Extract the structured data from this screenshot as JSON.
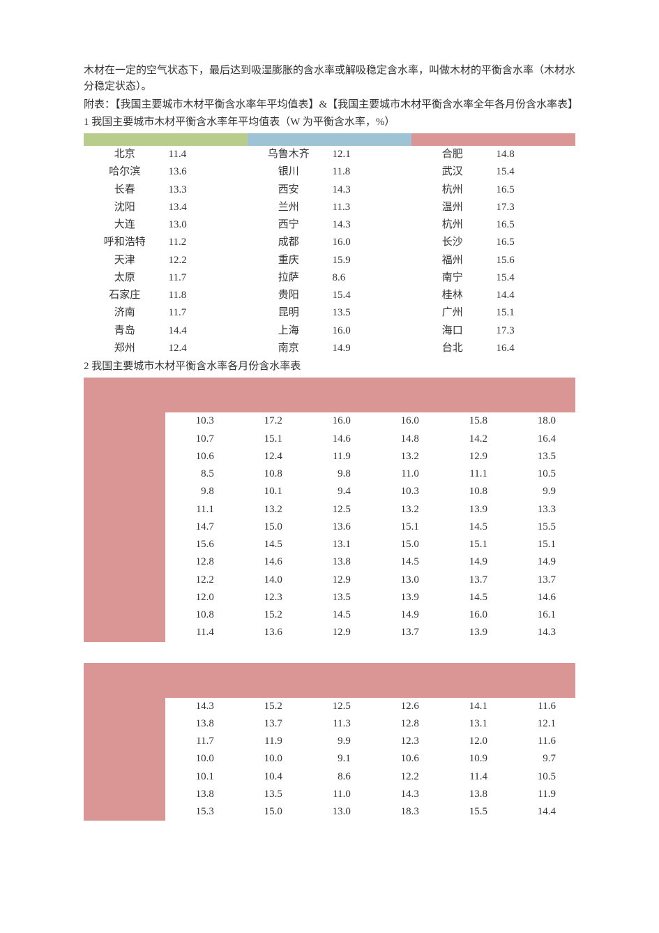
{
  "colors": {
    "text": "#333333",
    "header_green": "#b8cc8b",
    "header_blue": "#9dc3d5",
    "header_pink": "#da9694",
    "page_bg": "#ffffff"
  },
  "typography": {
    "font_family": "SimSun",
    "body_fontsize_pt": 11,
    "line_height": 1.55
  },
  "paragraphs": {
    "p1": "木材在一定的空气状态下，最后达到吸湿膨胀的含水率或解吸稳定含水率，叫做木材的平衡含水率（木材水分稳定状态）。",
    "p2": "附表：【我国主要城市木材平衡含水率年平均值表】&【我国主要城市木材平衡含水率全年各月份含水率表】",
    "p3": "1 我国主要城市木材平衡含水率年平均值表（W 为平衡含水率，%）",
    "p4": "2 我国主要城市木材平衡含水率各月份含水率表"
  },
  "table1": {
    "type": "table",
    "column_group_colors": [
      "#b8cc8b",
      "#9dc3d5",
      "#da9694"
    ],
    "rows": [
      {
        "c1": "北京",
        "v1": "11.4",
        "c2": "乌鲁木齐",
        "v2": "12.1",
        "c3": "合肥",
        "v3": "14.8"
      },
      {
        "c1": "哈尔滨",
        "v1": "13.6",
        "c2": "银川",
        "v2": "11.8",
        "c3": "武汉",
        "v3": "15.4"
      },
      {
        "c1": "长春",
        "v1": "13.3",
        "c2": "西安",
        "v2": "14.3",
        "c3": "杭州",
        "v3": "16.5"
      },
      {
        "c1": "沈阳",
        "v1": "13.4",
        "c2": "兰州",
        "v2": "11.3",
        "c3": "温州",
        "v3": "17.3"
      },
      {
        "c1": "大连",
        "v1": "13.0",
        "c2": "西宁",
        "v2": "14.3",
        "c3": "杭州",
        "v3": "16.5"
      },
      {
        "c1": "呼和浩特",
        "v1": "11.2",
        "c2": "成都",
        "v2": "16.0",
        "c3": "长沙",
        "v3": "16.5"
      },
      {
        "c1": "天津",
        "v1": "12.2",
        "c2": "重庆",
        "v2": "15.9",
        "c3": "福州",
        "v3": "15.6"
      },
      {
        "c1": "太原",
        "v1": "11.7",
        "c2": "拉萨",
        "v2": "8.6",
        "c3": "南宁",
        "v3": "15.4"
      },
      {
        "c1": "石家庄",
        "v1": "11.8",
        "c2": "贵阳",
        "v2": "15.4",
        "c3": "桂林",
        "v3": "14.4"
      },
      {
        "c1": "济南",
        "v1": "11.7",
        "c2": "昆明",
        "v2": "13.5",
        "c3": "广州",
        "v3": "15.1"
      },
      {
        "c1": "青岛",
        "v1": "14.4",
        "c2": "上海",
        "v2": "16.0",
        "c3": "海口",
        "v3": "17.3"
      },
      {
        "c1": "郑州",
        "v1": "12.4",
        "c2": "南京",
        "v2": "14.9",
        "c3": "台北",
        "v3": "16.4"
      }
    ]
  },
  "table2a": {
    "type": "table",
    "side_color": "#da9694",
    "header_color": "#da9694",
    "rows": [
      [
        "10.3",
        "17.2",
        "16.0",
        "16.0",
        "15.8",
        "18.0"
      ],
      [
        "10.7",
        "15.1",
        "14.6",
        "14.8",
        "14.2",
        "16.4"
      ],
      [
        "10.6",
        "12.4",
        "11.9",
        "13.2",
        "12.9",
        "13.5"
      ],
      [
        "8.5",
        "10.8",
        "9.8",
        "11.0",
        "11.1",
        "10.5"
      ],
      [
        "9.8",
        "10.1",
        "9.4",
        "10.3",
        "10.8",
        "9.9"
      ],
      [
        "11.1",
        "13.2",
        "12.5",
        "13.2",
        "13.9",
        "13.3"
      ],
      [
        "14.7",
        "15.0",
        "13.6",
        "15.1",
        "14.5",
        "15.5"
      ],
      [
        "15.6",
        "14.5",
        "13.1",
        "15.0",
        "15.1",
        "15.1"
      ],
      [
        "12.8",
        "14.6",
        "13.8",
        "14.5",
        "14.9",
        "14.9"
      ],
      [
        "12.2",
        "14.0",
        "12.9",
        "13.0",
        "13.7",
        "13.7"
      ],
      [
        "12.0",
        "12.3",
        "13.5",
        "13.9",
        "14.5",
        "14.6"
      ],
      [
        "10.8",
        "15.2",
        "14.5",
        "14.9",
        "16.0",
        "16.1"
      ],
      [
        "11.4",
        "13.6",
        "12.9",
        "13.7",
        "13.9",
        "14.3"
      ]
    ]
  },
  "table2b": {
    "type": "table",
    "side_color": "#da9694",
    "header_color": "#da9694",
    "rows": [
      [
        "14.3",
        "15.2",
        "12.5",
        "12.6",
        "14.1",
        "11.6"
      ],
      [
        "13.8",
        "13.7",
        "11.3",
        "12.8",
        "13.1",
        "12.1"
      ],
      [
        "11.7",
        "11.9",
        "9.9",
        "12.3",
        "12.0",
        "11.6"
      ],
      [
        "10.0",
        "10.0",
        "9.1",
        "10.6",
        "10.9",
        "9.7"
      ],
      [
        "10.1",
        "10.4",
        "8.6",
        "12.2",
        "11.4",
        "10.5"
      ],
      [
        "13.8",
        "13.5",
        "11.0",
        "14.3",
        "13.8",
        "11.9"
      ],
      [
        "15.3",
        "15.0",
        "13.0",
        "18.3",
        "15.5",
        "14.4"
      ]
    ]
  }
}
